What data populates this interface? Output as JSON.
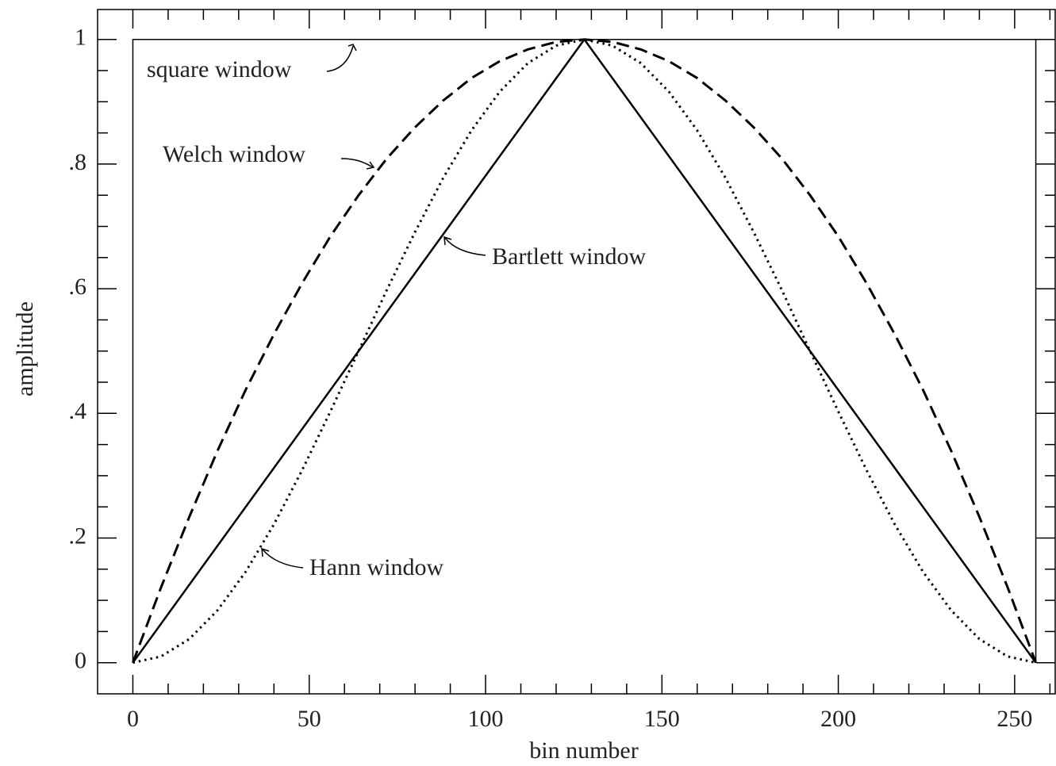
{
  "chart_data": {
    "type": "line",
    "xlabel": "bin number",
    "ylabel": "amplitude",
    "xlim": [
      -10,
      261.5
    ],
    "ylim": [
      -0.05,
      1.048
    ],
    "xticks": [
      0,
      50,
      100,
      150,
      200,
      250
    ],
    "yticks": [
      0,
      {
        "value": 0.2,
        "label": ".2"
      },
      {
        "value": 0.4,
        "label": ".4"
      },
      {
        "value": 0.6,
        "label": ".6"
      },
      {
        "value": 0.8,
        "label": ".8"
      },
      1
    ],
    "xminorticks": [
      10,
      20,
      30,
      40,
      60,
      70,
      80,
      90,
      110,
      120,
      130,
      140,
      160,
      170,
      180,
      190,
      210,
      220,
      230,
      240,
      260
    ],
    "yminorticks": [
      0.05,
      0.1,
      0.15,
      0.25,
      0.3,
      0.35,
      0.45,
      0.5,
      0.55,
      0.65,
      0.7,
      0.75,
      0.85,
      0.9,
      0.95
    ],
    "series": [
      {
        "name": "square window",
        "color": "#000000",
        "style": "solid",
        "x": [
          0,
          0,
          256,
          256
        ],
        "values": [
          0,
          1,
          1,
          0
        ]
      },
      {
        "name": "Welch window",
        "color": "#000000",
        "style": "dashed",
        "x": [
          0,
          8,
          16,
          24,
          32,
          40,
          48,
          56,
          64,
          72,
          80,
          88,
          96,
          104,
          112,
          120,
          128,
          136,
          144,
          152,
          160,
          168,
          176,
          184,
          192,
          200,
          208,
          216,
          224,
          232,
          240,
          248,
          256
        ],
        "values": [
          0,
          0.121,
          0.234,
          0.34,
          0.438,
          0.527,
          0.609,
          0.684,
          0.75,
          0.809,
          0.859,
          0.902,
          0.938,
          0.965,
          0.984,
          0.996,
          1,
          0.996,
          0.984,
          0.965,
          0.938,
          0.902,
          0.859,
          0.809,
          0.75,
          0.684,
          0.609,
          0.527,
          0.438,
          0.34,
          0.234,
          0.121,
          0
        ]
      },
      {
        "name": "Bartlett window",
        "color": "#000000",
        "style": "solid",
        "x": [
          0,
          128,
          256
        ],
        "values": [
          0,
          1,
          0
        ]
      },
      {
        "name": "Hann window",
        "color": "#000000",
        "style": "dotted",
        "x": [
          0,
          8,
          16,
          24,
          32,
          40,
          48,
          56,
          64,
          72,
          80,
          88,
          96,
          104,
          112,
          120,
          128,
          136,
          144,
          152,
          160,
          168,
          176,
          184,
          192,
          200,
          208,
          216,
          224,
          232,
          240,
          248,
          256
        ],
        "values": [
          0,
          0.01,
          0.038,
          0.084,
          0.146,
          0.222,
          0.309,
          0.403,
          0.5,
          0.598,
          0.691,
          0.778,
          0.854,
          0.916,
          0.962,
          0.99,
          1,
          0.99,
          0.962,
          0.916,
          0.854,
          0.778,
          0.691,
          0.598,
          0.5,
          0.403,
          0.309,
          0.222,
          0.146,
          0.084,
          0.038,
          0.01,
          0
        ]
      }
    ]
  }
}
